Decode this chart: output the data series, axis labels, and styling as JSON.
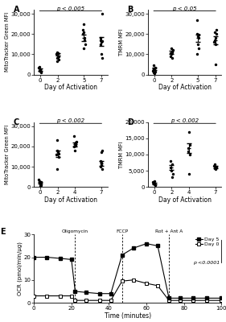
{
  "panel_A": {
    "title": "p < 0.005",
    "ylabel": "MitoTracker Green MFI",
    "xlabel": "Day of Activation",
    "label": "A",
    "x_ticks": [
      0,
      2,
      5,
      7
    ],
    "ylim": [
      0,
      32000
    ],
    "yticks": [
      0,
      10000,
      20000,
      30000
    ],
    "ytick_labels": [
      "0",
      "10,000",
      "20,000",
      "30,000"
    ],
    "data": {
      "0": [
        3500,
        3800,
        1500,
        2000,
        1000,
        2200
      ],
      "2": [
        10500,
        10000,
        11000,
        7500,
        8000,
        6500,
        9000,
        8500
      ],
      "5": [
        18000,
        17000,
        20000,
        22000,
        25000,
        13000,
        21000,
        15000
      ],
      "7": [
        16000,
        18000,
        15000,
        30000,
        17000,
        16500,
        10000,
        8000
      ]
    },
    "means": {
      "0": 2500,
      "2": 10000,
      "5": 18000,
      "7": 16500
    },
    "sems": {
      "0": 500,
      "2": 600,
      "5": 1500,
      "7": 2200
    }
  },
  "panel_B": {
    "title": "p < 0.05",
    "ylabel": "TMRM MFI",
    "xlabel": "Day of Activation",
    "label": "B",
    "x_ticks": [
      0,
      2,
      5,
      7
    ],
    "ylim": [
      0,
      32000
    ],
    "yticks": [
      0,
      10000,
      20000,
      30000
    ],
    "ytick_labels": [
      "0",
      "10,000",
      "20,000",
      "30,000"
    ],
    "data": {
      "0": [
        4500,
        3000,
        2000,
        1500,
        1000,
        500,
        2500,
        3500
      ],
      "2": [
        10000,
        12000,
        9000,
        8000,
        11000,
        13000,
        10500,
        11500
      ],
      "5": [
        27000,
        18000,
        19000,
        20000,
        15000,
        13000,
        10000,
        19500
      ],
      "7": [
        18000,
        17000,
        20000,
        22000,
        16000,
        5000,
        15000,
        21000
      ]
    },
    "means": {
      "0": 3000,
      "2": 11000,
      "5": 18000,
      "7": 17000
    },
    "sems": {
      "0": 600,
      "2": 700,
      "5": 1800,
      "7": 2000
    }
  },
  "panel_C": {
    "title": "p < 0.002",
    "ylabel": "MitoTracker Green MFI",
    "xlabel": "Day of Activation",
    "label": "C",
    "x_ticks": [
      0,
      2,
      4,
      7
    ],
    "ylim": [
      0,
      32000
    ],
    "yticks": [
      0,
      10000,
      20000,
      30000
    ],
    "ytick_labels": [
      "0",
      "10,000",
      "20,000",
      "30,000"
    ],
    "data": {
      "0": [
        3500,
        3000,
        1000,
        2000,
        500,
        1500,
        2500
      ],
      "2": [
        17000,
        16000,
        18000,
        15000,
        9000,
        23000,
        16500,
        17500
      ],
      "4": [
        21000,
        22000,
        20000,
        25000,
        21000,
        18000,
        20500,
        22500
      ],
      "7": [
        11000,
        12000,
        10000,
        9000,
        13000,
        18000,
        17000
      ]
    },
    "means": {
      "0": 2000,
      "2": 16500,
      "4": 21000,
      "7": 11500
    },
    "sems": {
      "0": 400,
      "2": 1500,
      "4": 900,
      "7": 1200
    }
  },
  "panel_D": {
    "title": "p < 0.002",
    "ylabel": "TMRM MFI",
    "xlabel": "Day of Activation",
    "label": "D",
    "x_ticks": [
      0,
      2,
      4,
      7
    ],
    "ylim": [
      0,
      20000
    ],
    "yticks": [
      0,
      5000,
      10000,
      15000,
      20000
    ],
    "ytick_labels": [
      "0",
      "5,000",
      "10,000",
      "15,000",
      "20,000"
    ],
    "data": {
      "0": [
        1500,
        1000,
        500,
        1200,
        800,
        1800
      ],
      "2": [
        7000,
        6000,
        8000,
        5000,
        4000,
        3000
      ],
      "4": [
        13000,
        12000,
        11000,
        17000,
        10000,
        4000
      ],
      "7": [
        6500,
        6000,
        5500,
        7000,
        6200,
        5800
      ]
    },
    "means": {
      "0": 1100,
      "2": 6000,
      "4": 12000,
      "7": 6200
    },
    "sems": {
      "0": 200,
      "2": 700,
      "4": 1500,
      "7": 300
    }
  },
  "panel_E": {
    "label": "E",
    "ylabel": "OCR (pmol/min/µg)",
    "xlabel": "Time (minutes)",
    "ylim": [
      0,
      30
    ],
    "yticks": [
      0,
      10,
      20,
      30
    ],
    "xlim": [
      0,
      100
    ],
    "xticks": [
      0,
      20,
      40,
      60,
      80,
      100
    ],
    "vlines": [
      22,
      47,
      72
    ],
    "vline_labels": [
      "Oligomycin",
      "FCCP",
      "Rot + Ant A"
    ],
    "day5_x": [
      0,
      7,
      14,
      20,
      22,
      28,
      35,
      41,
      47,
      53,
      60,
      66,
      72,
      78,
      85,
      92,
      100
    ],
    "day5_y": [
      20,
      20,
      19.5,
      19,
      5,
      4.5,
      4,
      4,
      21,
      24,
      26,
      25,
      2,
      2,
      2,
      2,
      2
    ],
    "day0_x": [
      0,
      7,
      14,
      20,
      22,
      28,
      35,
      41,
      47,
      53,
      60,
      66,
      72,
      78,
      85,
      92,
      100
    ],
    "day0_y": [
      3,
      3,
      3,
      3,
      1,
      1,
      1,
      1,
      9.5,
      10,
      8.5,
      7.5,
      1,
      1,
      1,
      1,
      1
    ],
    "p_text": "p <0.0001"
  }
}
